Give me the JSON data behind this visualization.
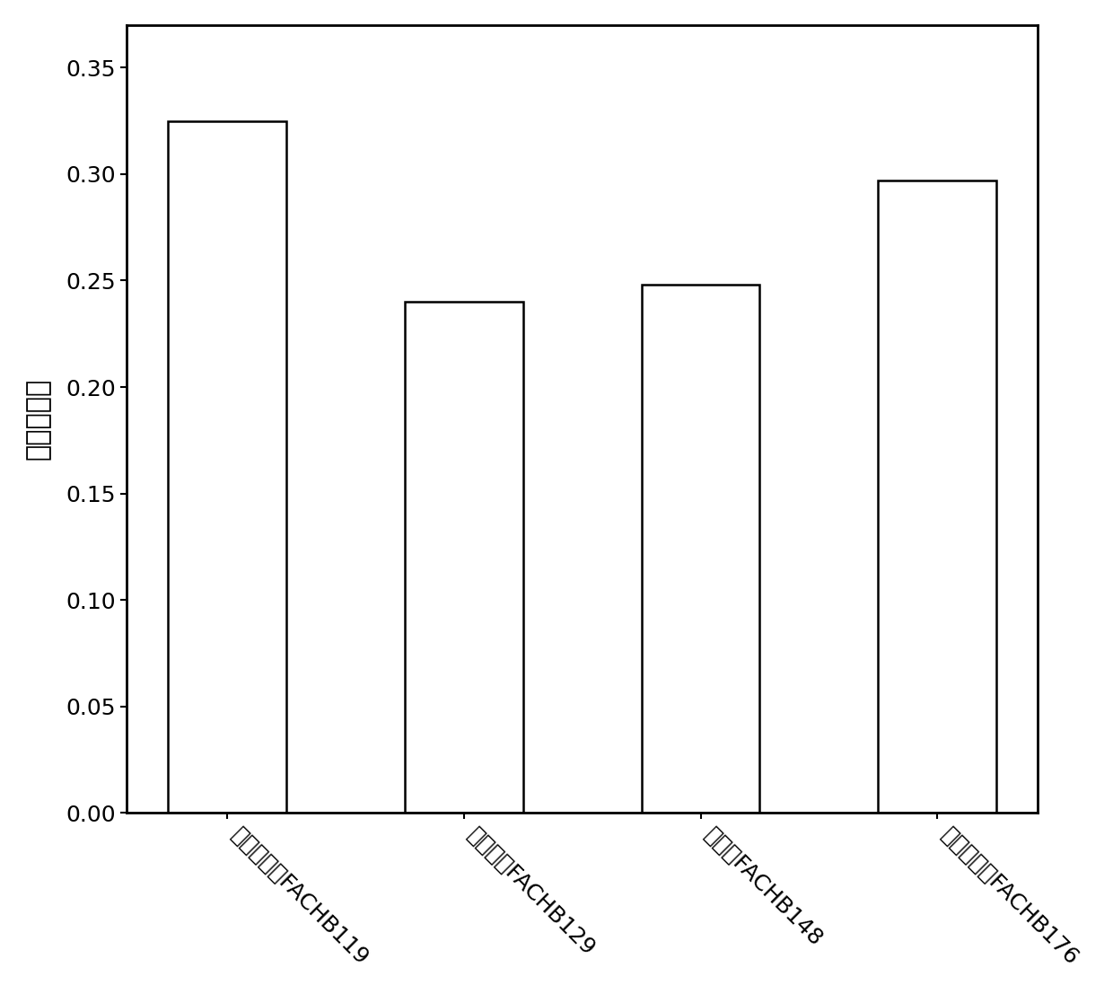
{
  "categories": [
    "固氮鱼腥藻FACHB119",
    "小单歧藻FACHB129",
    "念珠藻FACHB148",
    "多变鱼腥藻FACHB176"
  ],
  "values": [
    0.325,
    0.24,
    0.248,
    0.297
  ],
  "bar_color": "#ffffff",
  "bar_edgecolor": "#000000",
  "bar_linewidth": 1.8,
  "ylabel": "比生长速率",
  "ylim": [
    0,
    0.37
  ],
  "yticks": [
    0.0,
    0.05,
    0.1,
    0.15,
    0.2,
    0.25,
    0.3,
    0.35
  ],
  "bar_width": 0.5,
  "title": "",
  "xlabel": "",
  "background_color": "#ffffff",
  "tick_labelsize": 18,
  "ylabel_fontsize": 22,
  "xlabel_rotation": -45,
  "spine_linewidth": 2.0
}
